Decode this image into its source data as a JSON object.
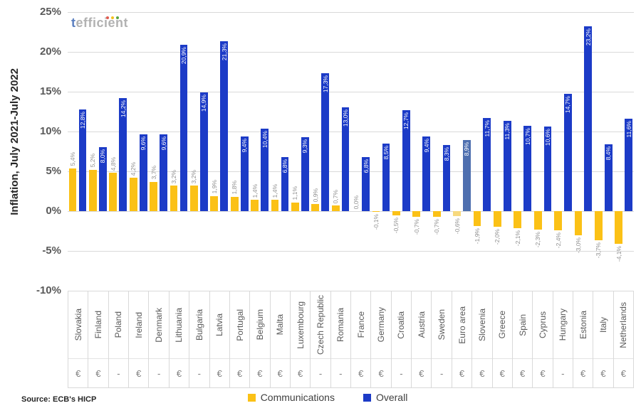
{
  "logo": {
    "text_first": "t",
    "text_rest": "efficient",
    "dot_colors": [
      "#e05a4e",
      "#f2c01d",
      "#5aa544"
    ]
  },
  "y_axis": {
    "title": "Inflation, July 2021-July 2022",
    "ticks": [
      "25%",
      "20%",
      "15%",
      "10%",
      "5%",
      "0%",
      "-5%",
      "-10%"
    ]
  },
  "legend": [
    {
      "label": "Communications",
      "color": "#FBC116"
    },
    {
      "label": "Overall",
      "color": "#1C3BC7"
    }
  ],
  "source": "Source: ECB's HICP",
  "chart_data": {
    "type": "bar",
    "title": "",
    "ylabel": "Inflation, July 2021-July 2022",
    "ylim": [
      -10,
      25
    ],
    "grid": true,
    "legend_position": "bottom",
    "decimal_separator": ",",
    "categories": [
      "Slovakia",
      "Finland",
      "Poland",
      "Ireland",
      "Denmark",
      "Lithuania",
      "Bulgaria",
      "Latvia",
      "Portugal",
      "Belgium",
      "Malta",
      "Luxembourg",
      "Czech Republic",
      "Romania",
      "France",
      "Germany",
      "Croatia",
      "Austria",
      "Sweden",
      "Euro area",
      "Slovenia",
      "Greece",
      "Spain",
      "Cyprus",
      "Hungary",
      "Estonia",
      "Italy",
      "Netherlands"
    ],
    "currency_row": [
      "€",
      "€",
      "-",
      "€",
      "-",
      "€",
      "-",
      "€",
      "€",
      "€",
      "€",
      "€",
      "-",
      "-",
      "€",
      "€",
      "-",
      "€",
      "-",
      "€",
      "€",
      "€",
      "€",
      "€",
      "-",
      "€",
      "€",
      "€"
    ],
    "series": [
      {
        "name": "Communications",
        "color": "#FBC116",
        "values": [
          5.4,
          5.2,
          4.8,
          4.2,
          3.7,
          3.2,
          3.2,
          1.9,
          1.8,
          1.4,
          1.4,
          1.1,
          0.9,
          0.7,
          0.0,
          -0.1,
          -0.5,
          -0.7,
          -0.7,
          -0.6,
          -1.9,
          -2.0,
          -2.1,
          -2.3,
          -2.4,
          -3.0,
          -3.7,
          -4.1
        ]
      },
      {
        "name": "Overall",
        "color": "#1C3BC7",
        "values": [
          12.8,
          8.0,
          14.2,
          9.6,
          9.6,
          20.9,
          14.9,
          21.3,
          9.4,
          10.4,
          6.8,
          9.3,
          17.3,
          13.0,
          6.8,
          8.5,
          12.7,
          9.4,
          8.3,
          8.9,
          11.7,
          11.3,
          10.7,
          10.6,
          14.7,
          23.2,
          8.4,
          11.6
        ]
      }
    ],
    "highlight_category": "Euro area",
    "highlight_index": 19,
    "highlight_colors": {
      "communications": "#F7D97E",
      "overall": "#4E6FAF"
    }
  }
}
